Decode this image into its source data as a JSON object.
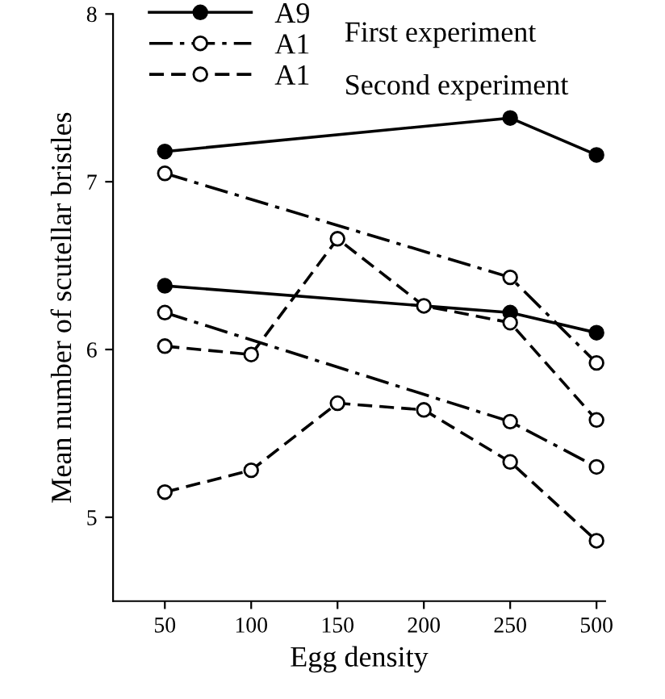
{
  "chart_data": {
    "type": "line",
    "xlabel": "Egg density",
    "ylabel": "Mean number of scutellar bristles",
    "categories": [
      "50",
      "100",
      "150",
      "200",
      "250",
      "500"
    ],
    "ylim": [
      4.5,
      8
    ],
    "yticks": [
      5,
      6,
      7,
      8
    ],
    "marker": "circle",
    "grid": false,
    "legend": "top left",
    "series": [
      {
        "name": "A9",
        "color": "#000000",
        "line_style": "solid",
        "values": [
          7.18,
          null,
          null,
          null,
          7.38,
          7.16
        ]
      },
      {
        "color": "#000000",
        "line_style": "solid",
        "values": [
          6.38,
          null,
          null,
          null,
          6.22,
          6.1
        ]
      },
      {
        "name": "A1",
        "color": "#000000",
        "line_style": "dashdot",
        "values": [
          7.05,
          null,
          null,
          null,
          6.43,
          5.92
        ]
      },
      {
        "color": "#000000",
        "line_style": "dashdot",
        "values": [
          6.22,
          null,
          null,
          null,
          5.57,
          5.3
        ]
      },
      {
        "name": "A1",
        "color": "#000000",
        "line_style": "dashed",
        "values": [
          6.02,
          5.97,
          6.66,
          6.26,
          6.16,
          5.58
        ]
      },
      {
        "color": "#000000",
        "line_style": "dashed",
        "values": [
          5.15,
          5.28,
          5.68,
          5.64,
          5.33,
          4.86
        ]
      }
    ],
    "annotations": [
      "First experiment",
      "Second experiment"
    ]
  }
}
